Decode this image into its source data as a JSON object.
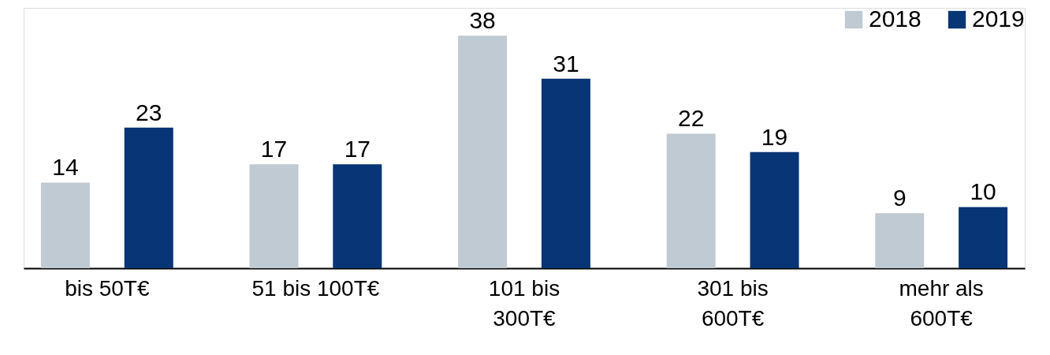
{
  "chart_data": {
    "type": "bar",
    "categories": [
      "bis 50T€",
      "51 bis 100T€",
      "101 bis 300T€",
      "301 bis 600T€",
      "mehr als 600T€"
    ],
    "series": [
      {
        "name": "2018",
        "color": "#c0cad3",
        "values": [
          14,
          17,
          38,
          22,
          9
        ]
      },
      {
        "name": "2019",
        "color": "#073575",
        "values": [
          23,
          17,
          31,
          19,
          10
        ]
      }
    ],
    "data_labels": true,
    "legend": "top right",
    "grid": false
  }
}
